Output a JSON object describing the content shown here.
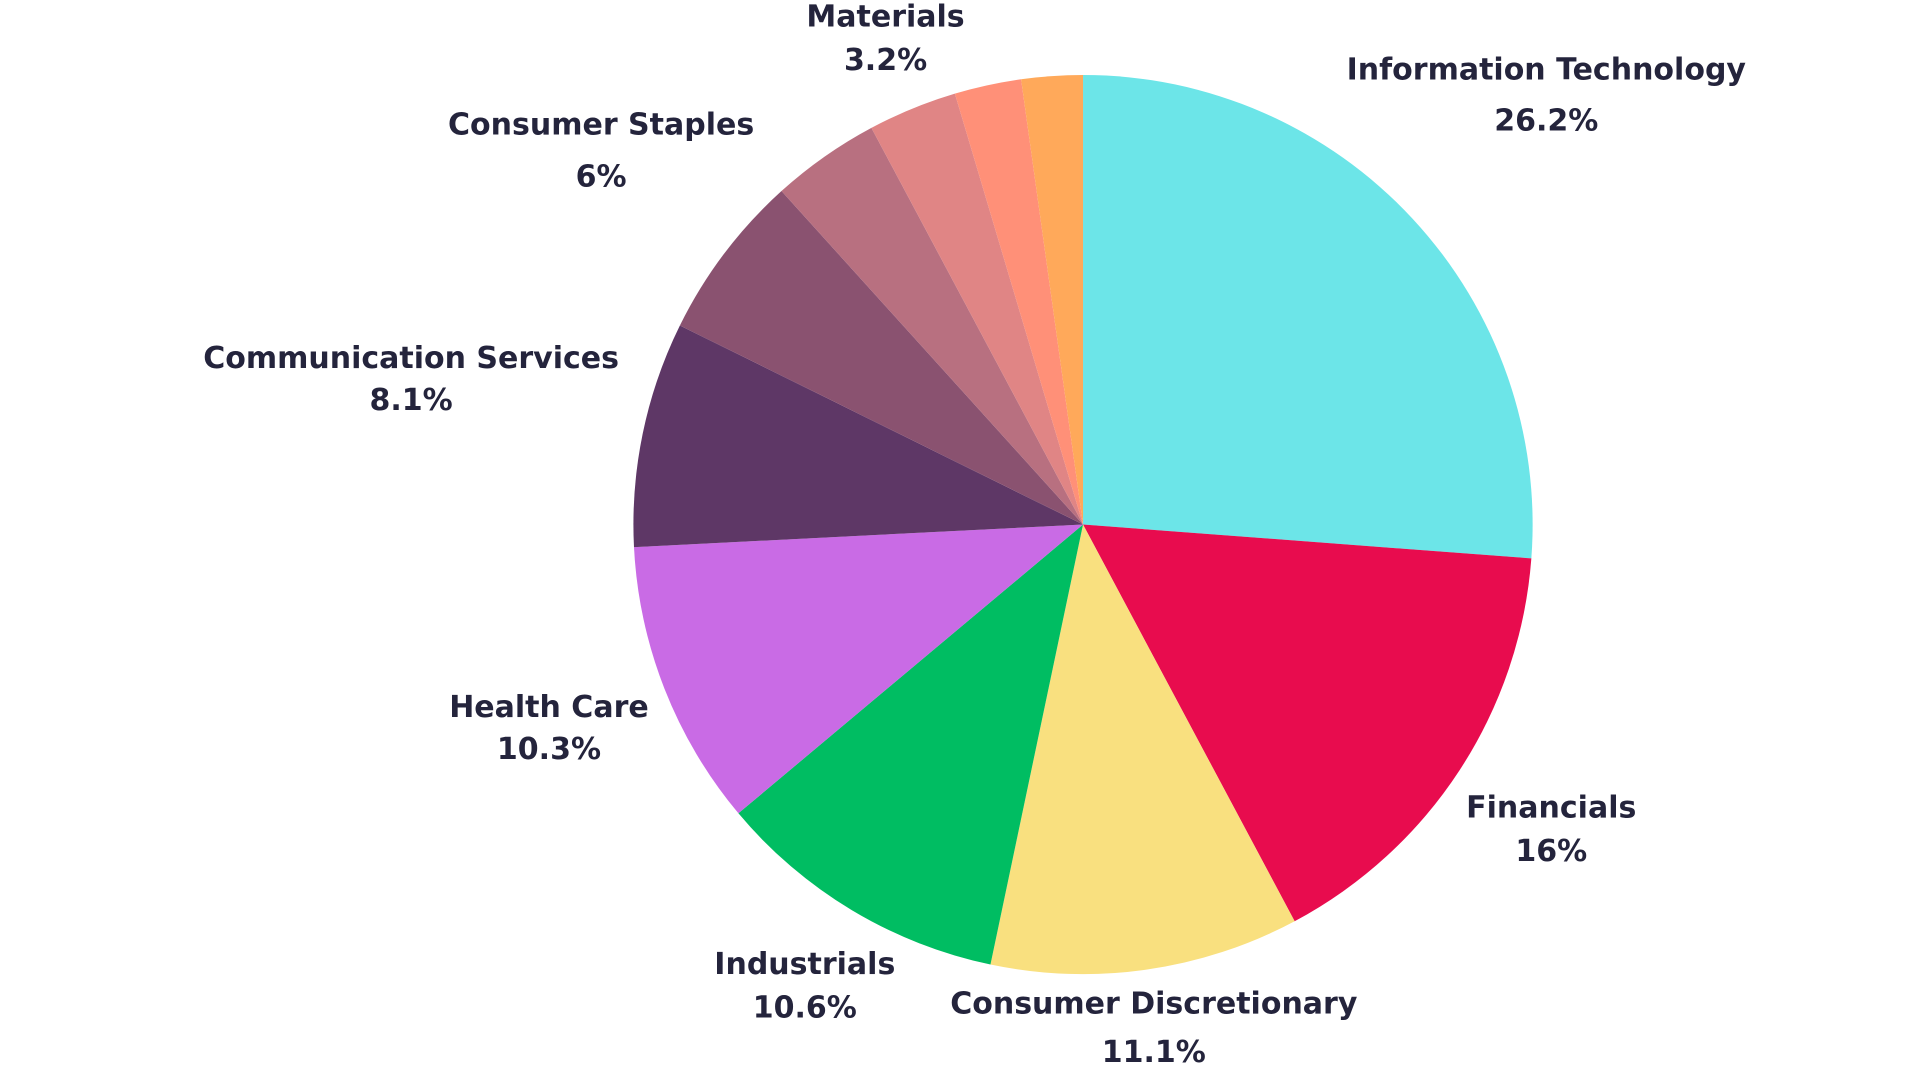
{
  "chart_data": {
    "type": "pie",
    "categories": [
      "Information Technology",
      "Financials",
      "Consumer Discretionary",
      "Industrials",
      "Health Care",
      "Communication Services",
      "Consumer Staples",
      null,
      "Materials",
      null,
      null
    ],
    "values": [
      26.2,
      16,
      11.1,
      10.6,
      10.3,
      8.1,
      6,
      3.9,
      3.2,
      2.4,
      2.2
    ],
    "value_labels": [
      "26.2%",
      "16%",
      "11.1%",
      "10.6%",
      "10.3%",
      "8.1%",
      "6%",
      null,
      "3.2%",
      null,
      null
    ],
    "colors": [
      "#6ce5e8",
      "#e80c4e",
      "#f9e07f",
      "#00bd62",
      "#c96be5",
      "#5e3766",
      "#8a5270",
      "#b87080",
      "#e08585",
      "#ff9078",
      "#ffa95a"
    ]
  }
}
